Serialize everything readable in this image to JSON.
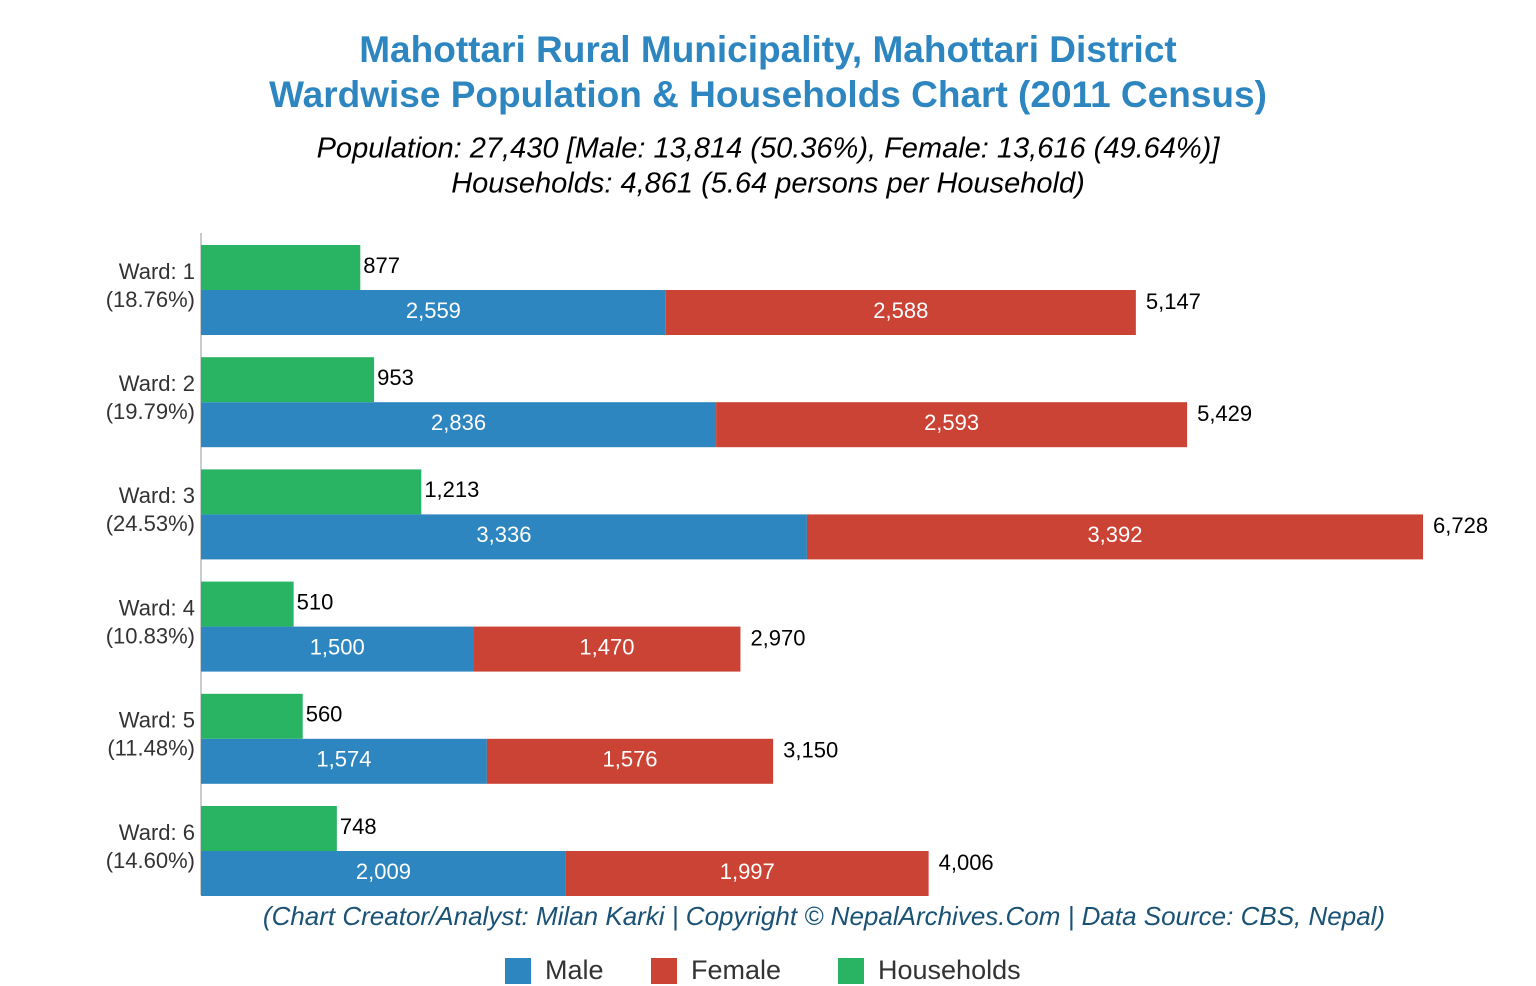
{
  "chart_data": {
    "type": "bar",
    "orientation": "horizontal",
    "title": [
      "Mahottari Rural Municipality, Mahottari District",
      "Wardwise Population & Households Chart (2011 Census)"
    ],
    "subtitle": [
      "Population: 27,430 [Male: 13,814 (50.36%), Female: 13,616 (49.64%)]",
      "Households: 4,861 (5.64 persons per Household)"
    ],
    "footer": "(Chart Creator/Analyst: Milan Karki | Copyright © NepalArchives.Com | Data Source: CBS, Nepal)",
    "categories": [
      "Ward: 1",
      "Ward: 2",
      "Ward: 3",
      "Ward: 4",
      "Ward: 5",
      "Ward: 6"
    ],
    "category_sublabels": [
      "(18.76%)",
      "(19.79%)",
      "(24.53%)",
      "(10.83%)",
      "(11.48%)",
      "(14.60%)"
    ],
    "series": [
      {
        "name": "Male",
        "color": "#2e86c1",
        "stack": "population",
        "values": [
          2559,
          2836,
          3336,
          1500,
          1574,
          2009
        ],
        "value_labels": [
          "2,559",
          "2,836",
          "3,336",
          "1,500",
          "1,574",
          "2,009"
        ]
      },
      {
        "name": "Female",
        "color": "#cb4335",
        "stack": "population",
        "values": [
          2588,
          2593,
          3392,
          1470,
          1576,
          1997
        ],
        "value_labels": [
          "2,588",
          "2,593",
          "3,392",
          "1,470",
          "1,576",
          "1,997"
        ]
      },
      {
        "name": "Households",
        "color": "#28b463",
        "stack": "households",
        "values": [
          877,
          953,
          1213,
          510,
          560,
          748
        ],
        "value_labels": [
          "877",
          "953",
          "1,213",
          "510",
          "560",
          "748"
        ]
      }
    ],
    "totals": [
      5147,
      5429,
      6728,
      2970,
      3150,
      4006
    ],
    "total_labels": [
      "5,147",
      "5,429",
      "6,728",
      "2,970",
      "3,150",
      "4,006"
    ],
    "xlim": [
      0,
      7350
    ]
  }
}
